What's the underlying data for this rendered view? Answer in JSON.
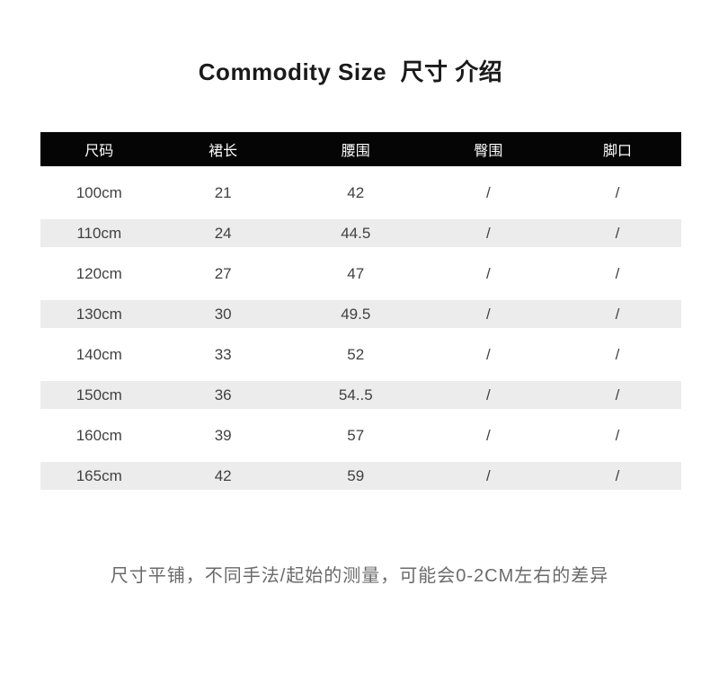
{
  "chart_data": {
    "type": "table",
    "title": "Commodity Size  尺寸 介绍",
    "columns": [
      "尺码",
      "裙长",
      "腰围",
      "臀围",
      "脚口"
    ],
    "rows": [
      [
        "100cm",
        "21",
        "42",
        "/",
        "/"
      ],
      [
        "110cm",
        "24",
        "44.5",
        "/",
        "/"
      ],
      [
        "120cm",
        "27",
        "47",
        "/",
        "/"
      ],
      [
        "130cm",
        "30",
        "49.5",
        "/",
        "/"
      ],
      [
        "140cm",
        "33",
        "52",
        "/",
        "/"
      ],
      [
        "150cm",
        "36",
        "54..5",
        "/",
        "/"
      ],
      [
        "160cm",
        "39",
        "57",
        "/",
        "/"
      ],
      [
        "165cm",
        "42",
        "59",
        "/",
        "/"
      ]
    ],
    "note": "尺寸平铺，不同手法/起始的测量，可能会0-2CM左右的差异",
    "layout": {
      "striped_rows": "even rows white, odd rows gray",
      "header_style": "black bar with white centered labels",
      "grid": "off"
    }
  },
  "colors": {
    "header_bg": "#050505",
    "header_text": "#fdfdfd",
    "alt_row_bg": "#ececec",
    "body_text": "#414141",
    "title_text": "#1a1a1a",
    "note_text": "#6a6a6a",
    "page_bg": "#ffffff"
  }
}
